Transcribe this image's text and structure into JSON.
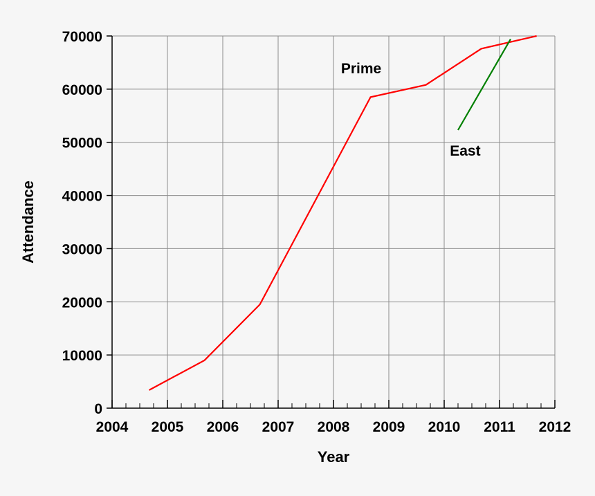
{
  "chart_data": {
    "type": "line",
    "title": "",
    "xlabel": "Year",
    "ylabel": "Attendance",
    "xlim": [
      2004,
      2012
    ],
    "ylim": [
      0,
      70000
    ],
    "x_ticks": [
      2004,
      2005,
      2006,
      2007,
      2008,
      2009,
      2010,
      2011,
      2012
    ],
    "y_ticks": [
      0,
      10000,
      20000,
      30000,
      40000,
      50000,
      60000,
      70000
    ],
    "grid": true,
    "series": [
      {
        "name": "Prime",
        "color": "#ff0000",
        "points": [
          [
            2004.67,
            3400
          ],
          [
            2005.67,
            9000
          ],
          [
            2006.67,
            19500
          ],
          [
            2008.67,
            58500
          ],
          [
            2009.67,
            60800
          ],
          [
            2010.67,
            67600
          ],
          [
            2011.67,
            70000
          ]
        ]
      },
      {
        "name": "East",
        "color": "#008000",
        "points": [
          [
            2010.25,
            52300
          ],
          [
            2011.2,
            69400
          ]
        ]
      }
    ],
    "annotations": [
      {
        "text": "Prime",
        "x": 2008.5,
        "y": 63000
      },
      {
        "text": "East",
        "x": 2010.38,
        "y": 47500
      }
    ]
  }
}
